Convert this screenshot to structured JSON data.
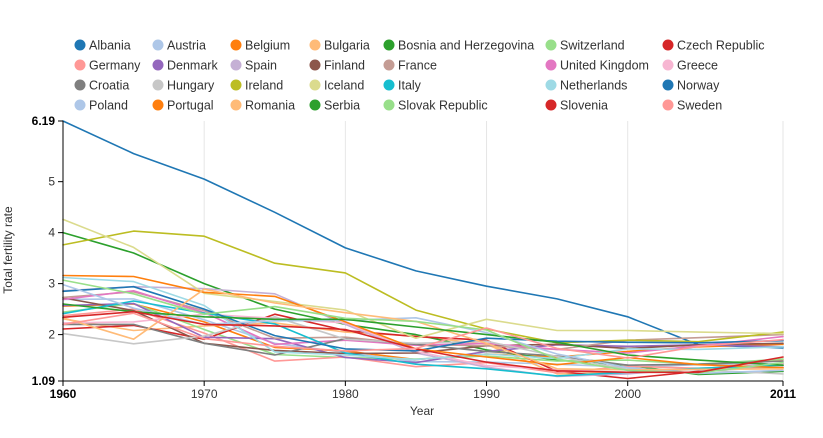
{
  "chart_data": {
    "type": "line",
    "title": "",
    "xlabel": "Year",
    "ylabel": "Total fertility rate",
    "xlim": [
      1960,
      2011
    ],
    "ylim": [
      1.09,
      6.19
    ],
    "x_ticks": [
      {
        "value": 1960,
        "label": "1960",
        "bold": true
      },
      {
        "value": 1970,
        "label": "1970",
        "bold": false
      },
      {
        "value": 1980,
        "label": "1980",
        "bold": false
      },
      {
        "value": 1990,
        "label": "1990",
        "bold": false
      },
      {
        "value": 2000,
        "label": "2000",
        "bold": false
      },
      {
        "value": 2011,
        "label": "2011",
        "bold": true
      }
    ],
    "y_ticks": [
      {
        "value": 6.19,
        "label": "6.19",
        "bold": true
      },
      {
        "value": 5,
        "label": "5",
        "bold": false
      },
      {
        "value": 4,
        "label": "4",
        "bold": false
      },
      {
        "value": 3,
        "label": "3",
        "bold": false
      },
      {
        "value": 2,
        "label": "2",
        "bold": false
      },
      {
        "value": 1.09,
        "label": "1.09",
        "bold": true
      }
    ],
    "grid": true,
    "legend_position": "top",
    "x": [
      1960,
      1965,
      1970,
      1975,
      1980,
      1985,
      1990,
      1995,
      2000,
      2005,
      2011
    ],
    "series": [
      {
        "name": "Albania",
        "color": "#1f77b4",
        "values": [
          6.19,
          5.55,
          5.05,
          4.4,
          3.7,
          3.25,
          2.95,
          2.7,
          2.35,
          1.8,
          1.74
        ]
      },
      {
        "name": "Austria",
        "color": "#aec7e8",
        "values": [
          2.69,
          2.7,
          2.29,
          1.83,
          1.65,
          1.47,
          1.46,
          1.42,
          1.36,
          1.41,
          1.43
        ]
      },
      {
        "name": "Belgium",
        "color": "#ff7f0e",
        "values": [
          2.56,
          2.6,
          2.25,
          1.75,
          1.68,
          1.51,
          1.62,
          1.56,
          1.67,
          1.76,
          1.81
        ]
      },
      {
        "name": "Bulgaria",
        "color": "#ffbb78",
        "values": [
          2.31,
          2.08,
          2.17,
          2.23,
          2.05,
          1.97,
          1.81,
          1.23,
          1.26,
          1.32,
          1.51
        ]
      },
      {
        "name": "Bosnia and Herzegovina",
        "color": "#2ca02c",
        "values": [
          4.0,
          3.6,
          3.0,
          2.5,
          2.2,
          2.0,
          1.7,
          1.5,
          1.4,
          1.22,
          1.28
        ]
      },
      {
        "name": "Switzerland",
        "color": "#98df8a",
        "values": [
          2.44,
          2.61,
          2.1,
          1.61,
          1.55,
          1.52,
          1.58,
          1.48,
          1.5,
          1.42,
          1.52
        ]
      },
      {
        "name": "Czech Republic",
        "color": "#d62728",
        "values": [
          2.11,
          2.18,
          1.91,
          2.4,
          2.08,
          1.96,
          1.89,
          1.28,
          1.14,
          1.28,
          1.43
        ]
      },
      {
        "name": "Germany",
        "color": "#ff9896",
        "values": [
          2.37,
          2.5,
          2.03,
          1.48,
          1.56,
          1.37,
          1.45,
          1.25,
          1.38,
          1.34,
          1.36
        ]
      },
      {
        "name": "Denmark",
        "color": "#9467bd",
        "values": [
          2.57,
          2.61,
          1.95,
          1.92,
          1.55,
          1.45,
          1.67,
          1.8,
          1.77,
          1.8,
          1.76
        ]
      },
      {
        "name": "Spain",
        "color": "#c5b0d5",
        "values": [
          2.86,
          2.94,
          2.9,
          2.8,
          2.2,
          1.64,
          1.36,
          1.18,
          1.23,
          1.34,
          1.36
        ]
      },
      {
        "name": "Finland",
        "color": "#8c564b",
        "values": [
          2.72,
          2.47,
          1.83,
          1.69,
          1.63,
          1.64,
          1.78,
          1.81,
          1.73,
          1.8,
          1.83
        ]
      },
      {
        "name": "France",
        "color": "#c49c94",
        "values": [
          2.73,
          2.84,
          2.47,
          1.93,
          1.95,
          1.81,
          1.78,
          1.71,
          1.89,
          1.94,
          2.0
        ]
      },
      {
        "name": "United Kingdom",
        "color": "#e377c2",
        "values": [
          2.69,
          2.86,
          2.43,
          1.81,
          1.89,
          1.79,
          1.83,
          1.71,
          1.64,
          1.78,
          1.96
        ]
      },
      {
        "name": "Greece",
        "color": "#f7b6d2",
        "values": [
          2.23,
          2.25,
          2.4,
          2.32,
          2.23,
          1.67,
          1.39,
          1.31,
          1.26,
          1.33,
          1.43
        ]
      },
      {
        "name": "Croatia",
        "color": "#7f7f7f",
        "values": [
          2.2,
          2.2,
          1.83,
          1.6,
          1.92,
          1.81,
          1.67,
          1.58,
          1.4,
          1.42,
          1.48
        ]
      },
      {
        "name": "Hungary",
        "color": "#c7c7c7",
        "values": [
          2.02,
          1.82,
          1.97,
          2.35,
          1.91,
          1.83,
          1.87,
          1.57,
          1.32,
          1.31,
          1.23
        ]
      },
      {
        "name": "Ireland",
        "color": "#bcbd22",
        "values": [
          3.76,
          4.03,
          3.93,
          3.4,
          3.21,
          2.48,
          2.11,
          1.84,
          1.89,
          1.86,
          2.05
        ]
      },
      {
        "name": "Iceland",
        "color": "#dbdb8d",
        "values": [
          4.26,
          3.71,
          2.81,
          2.65,
          2.48,
          1.93,
          2.3,
          2.08,
          2.08,
          2.05,
          2.02
        ]
      },
      {
        "name": "Italy",
        "color": "#17becf",
        "values": [
          2.41,
          2.66,
          2.42,
          2.21,
          1.64,
          1.42,
          1.33,
          1.19,
          1.26,
          1.34,
          1.4
        ]
      },
      {
        "name": "Netherlands",
        "color": "#9edae5",
        "values": [
          3.12,
          3.04,
          2.57,
          1.66,
          1.6,
          1.51,
          1.62,
          1.53,
          1.72,
          1.71,
          1.76
        ]
      },
      {
        "name": "Norway",
        "color": "#1f77b4",
        "values": [
          2.85,
          2.94,
          2.5,
          1.98,
          1.72,
          1.68,
          1.93,
          1.87,
          1.85,
          1.84,
          1.88
        ]
      },
      {
        "name": "Poland",
        "color": "#aec7e8",
        "values": [
          2.98,
          2.52,
          2.2,
          2.27,
          2.28,
          2.33,
          2.04,
          1.62,
          1.35,
          1.24,
          1.3
        ]
      },
      {
        "name": "Portugal",
        "color": "#ff7f0e",
        "values": [
          3.16,
          3.14,
          2.83,
          2.75,
          2.25,
          1.72,
          1.56,
          1.41,
          1.55,
          1.41,
          1.35
        ]
      },
      {
        "name": "Romania",
        "color": "#ffbb78",
        "values": [
          2.33,
          1.91,
          2.89,
          2.62,
          2.43,
          2.26,
          1.83,
          1.33,
          1.31,
          1.32,
          1.33
        ]
      },
      {
        "name": "Serbia",
        "color": "#2ca02c",
        "values": [
          2.6,
          2.45,
          2.35,
          2.3,
          2.3,
          2.15,
          2.0,
          1.85,
          1.6,
          1.5,
          1.4
        ]
      },
      {
        "name": "Slovak Republic",
        "color": "#98df8a",
        "values": [
          3.07,
          2.8,
          2.4,
          2.55,
          2.32,
          2.26,
          2.09,
          1.52,
          1.3,
          1.25,
          1.45
        ]
      },
      {
        "name": "Slovenia",
        "color": "#d62728",
        "values": [
          2.34,
          2.45,
          2.2,
          2.17,
          2.1,
          1.72,
          1.46,
          1.29,
          1.26,
          1.26,
          1.56
        ]
      },
      {
        "name": "Sweden",
        "color": "#ff9896",
        "values": [
          2.2,
          2.42,
          1.92,
          1.77,
          1.68,
          1.73,
          2.13,
          1.73,
          1.54,
          1.77,
          1.9
        ]
      }
    ]
  }
}
